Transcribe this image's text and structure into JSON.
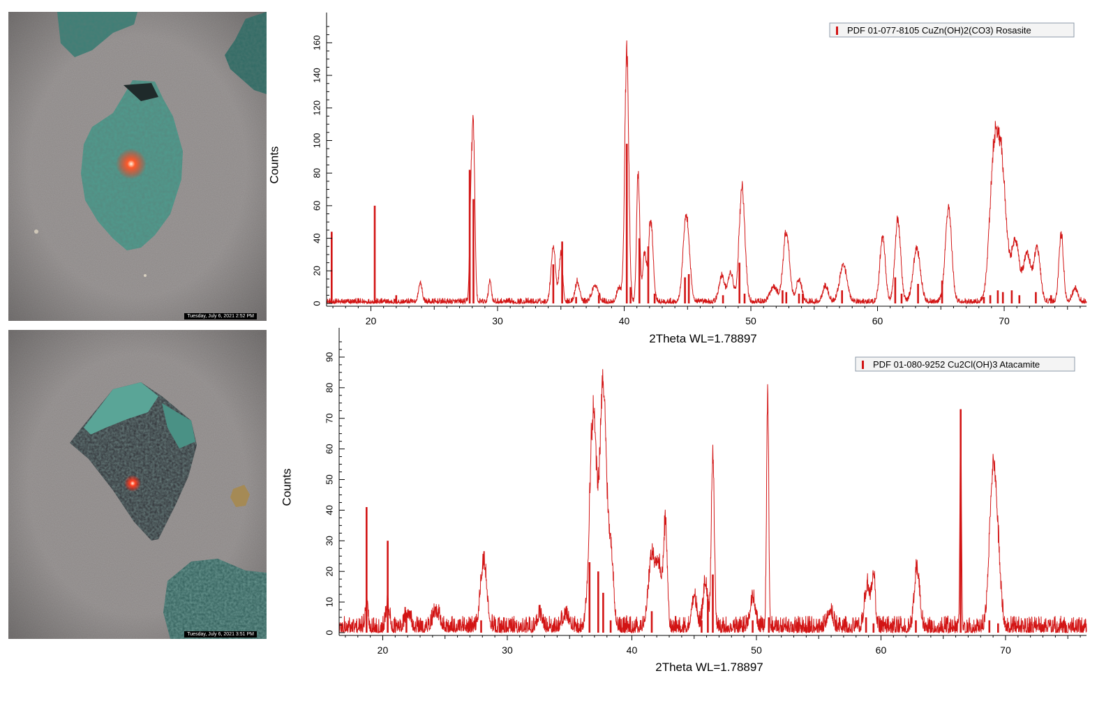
{
  "photos": [
    {
      "timestamp": "Tuesday, July 6, 2021 2:52 PM"
    },
    {
      "timestamp": "Tuesday, July 6, 2021 3:51 PM"
    }
  ],
  "colors": {
    "pattern": "#d21414",
    "reference": "#d21414",
    "axis": "#000000",
    "legend_bg": "#f4f4f4",
    "legend_border": "#8c9aa8",
    "mineral_green": "#4f9c8e",
    "paper_gray": "#8b8685"
  },
  "chart_data": [
    {
      "type": "line",
      "title": "",
      "xlabel": "2Theta WL=1.78897",
      "ylabel": "Counts",
      "xlim": [
        16.5,
        76.5
      ],
      "ylim": [
        0,
        170
      ],
      "xticks": [
        20,
        30,
        40,
        50,
        60,
        70
      ],
      "yticks": [
        0,
        20,
        40,
        60,
        80,
        100,
        120,
        140,
        160
      ],
      "legend": {
        "label": "PDF 01-077-8105 CuZn(OH)2(CO3) Rosasite",
        "placement": "top-right"
      },
      "background_level": 1.5,
      "peaks": [
        [
          23.9,
          12,
          0.2
        ],
        [
          27.9,
          55,
          0.15
        ],
        [
          28.1,
          100,
          0.16
        ],
        [
          29.4,
          14,
          0.15
        ],
        [
          34.4,
          34,
          0.25
        ],
        [
          35.0,
          30,
          0.2
        ],
        [
          36.3,
          12,
          0.25
        ],
        [
          37.7,
          10,
          0.35
        ],
        [
          39.6,
          9,
          0.25
        ],
        [
          40.2,
          154,
          0.22
        ],
        [
          41.1,
          80,
          0.17
        ],
        [
          41.6,
          30,
          0.2
        ],
        [
          42.1,
          50,
          0.25
        ],
        [
          44.9,
          54,
          0.35
        ],
        [
          47.7,
          16,
          0.3
        ],
        [
          48.4,
          18,
          0.3
        ],
        [
          49.3,
          70,
          0.32
        ],
        [
          51.8,
          9,
          0.4
        ],
        [
          52.8,
          43,
          0.35
        ],
        [
          53.8,
          14,
          0.3
        ],
        [
          55.9,
          10,
          0.3
        ],
        [
          57.3,
          23,
          0.4
        ],
        [
          60.4,
          40,
          0.3
        ],
        [
          61.6,
          50,
          0.32
        ],
        [
          63.1,
          33,
          0.4
        ],
        [
          65.6,
          58,
          0.35
        ],
        [
          69.1,
          56,
          0.45
        ],
        [
          69.7,
          90,
          0.6
        ],
        [
          70.9,
          37,
          0.4
        ],
        [
          71.8,
          30,
          0.4
        ],
        [
          72.6,
          33,
          0.35
        ],
        [
          74.5,
          42,
          0.25
        ],
        [
          75.6,
          8,
          0.3
        ]
      ],
      "reference_lines": [
        [
          16.9,
          44
        ],
        [
          20.3,
          60
        ],
        [
          22.0,
          5
        ],
        [
          27.8,
          82
        ],
        [
          28.1,
          64
        ],
        [
          34.4,
          24
        ],
        [
          35.1,
          38
        ],
        [
          36.2,
          4
        ],
        [
          38.0,
          5
        ],
        [
          40.2,
          98
        ],
        [
          40.5,
          10
        ],
        [
          41.2,
          40
        ],
        [
          41.9,
          35
        ],
        [
          42.4,
          6
        ],
        [
          44.8,
          16
        ],
        [
          45.1,
          18
        ],
        [
          47.8,
          5
        ],
        [
          49.1,
          25
        ],
        [
          49.5,
          6
        ],
        [
          52.5,
          8
        ],
        [
          52.8,
          7
        ],
        [
          53.8,
          6
        ],
        [
          54.1,
          6
        ],
        [
          57.2,
          8
        ],
        [
          61.4,
          16
        ],
        [
          61.9,
          6
        ],
        [
          63.2,
          12
        ],
        [
          65.1,
          14
        ],
        [
          68.4,
          4
        ],
        [
          68.9,
          5
        ],
        [
          69.5,
          8
        ],
        [
          69.9,
          7
        ],
        [
          70.6,
          8
        ],
        [
          71.2,
          5
        ],
        [
          72.5,
          7
        ],
        [
          73.7,
          5
        ]
      ]
    },
    {
      "type": "line",
      "title": "",
      "xlabel": "2Theta WL=1.78897",
      "ylabel": "Counts",
      "xlim": [
        16.5,
        76.5
      ],
      "ylim": [
        0,
        95
      ],
      "xticks": [
        20,
        30,
        40,
        50,
        60,
        70
      ],
      "yticks": [
        0,
        10,
        20,
        30,
        40,
        50,
        60,
        70,
        80,
        90
      ],
      "legend": {
        "label": "PDF 01-080-9252 Cu2Cl(OH)3 Atacamite",
        "placement": "top-right"
      },
      "background_level": 2.5,
      "peaks": [
        [
          18.7,
          10,
          0.15
        ],
        [
          20.4,
          8,
          0.2
        ],
        [
          22.0,
          5,
          0.3
        ],
        [
          24.3,
          5,
          0.4
        ],
        [
          28.1,
          22,
          0.35
        ],
        [
          32.6,
          4,
          0.3
        ],
        [
          34.7,
          4,
          0.4
        ],
        [
          36.9,
          70,
          0.4
        ],
        [
          37.7,
          80,
          0.35
        ],
        [
          38.3,
          25,
          0.3
        ],
        [
          41.6,
          22,
          0.4
        ],
        [
          42.2,
          18,
          0.35
        ],
        [
          42.7,
          32,
          0.2
        ],
        [
          45.0,
          10,
          0.3
        ],
        [
          45.9,
          15,
          0.25
        ],
        [
          46.5,
          57,
          0.17
        ],
        [
          49.7,
          10,
          0.3
        ],
        [
          50.9,
          77,
          0.12
        ],
        [
          55.9,
          6,
          0.3
        ],
        [
          58.9,
          14,
          0.3
        ],
        [
          59.4,
          17,
          0.2
        ],
        [
          62.9,
          19,
          0.3
        ],
        [
          66.4,
          68,
          0.09
        ],
        [
          68.9,
          40,
          0.35
        ],
        [
          69.2,
          25,
          0.3
        ],
        [
          69.5,
          12,
          0.3
        ]
      ],
      "reference_lines": [
        [
          18.7,
          41
        ],
        [
          20.4,
          30
        ],
        [
          21.9,
          5
        ],
        [
          27.9,
          4
        ],
        [
          29.4,
          3
        ],
        [
          36.6,
          23
        ],
        [
          37.3,
          20
        ],
        [
          37.7,
          13
        ],
        [
          38.3,
          4
        ],
        [
          41.6,
          7
        ],
        [
          45.6,
          4
        ],
        [
          46.1,
          11
        ],
        [
          46.5,
          19
        ],
        [
          49.7,
          4
        ],
        [
          51.0,
          5
        ],
        [
          54.2,
          3
        ],
        [
          58.8,
          5
        ],
        [
          59.4,
          3
        ],
        [
          62.8,
          4
        ],
        [
          66.4,
          73
        ],
        [
          68.7,
          4
        ],
        [
          69.4,
          3
        ],
        [
          71.9,
          3
        ],
        [
          74.8,
          3
        ]
      ]
    }
  ]
}
